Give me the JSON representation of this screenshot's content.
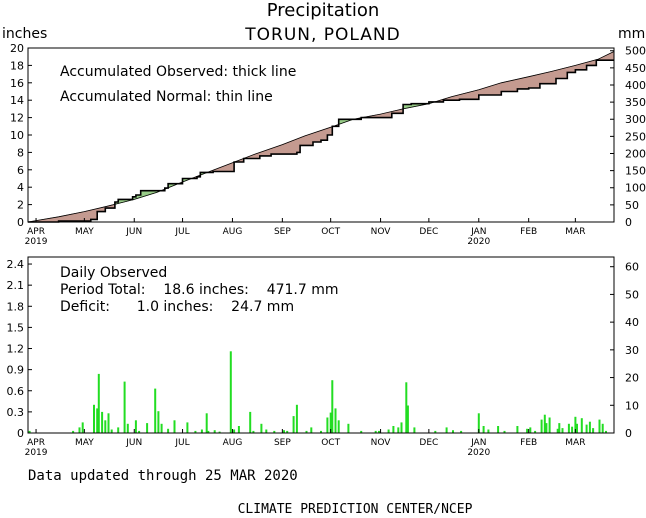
{
  "header": {
    "title": "Precipitation",
    "subtitle": "TORUN, POLAND",
    "left_unit": "inches",
    "right_unit": "mm"
  },
  "top_panel": {
    "legend_line1": "Accumulated Observed: thick line",
    "legend_line2": "Accumulated Normal: thin line"
  },
  "bottom_panel": {
    "line1": "Daily Observed",
    "line2": "Period Total:    18.6 inches:    471.7 mm",
    "line3": "Deficit:      1.0 inches:    24.7 mm"
  },
  "footer": {
    "updated": "Data updated through 25 MAR 2020",
    "credit": "CLIMATE PREDICTION CENTER/NCEP"
  },
  "colors": {
    "surplus_fill": "#98cc88",
    "deficit_fill": "#c49a90",
    "bars": "#22dd22",
    "axis": "#000000"
  },
  "chart_data": [
    {
      "type": "area",
      "x_start": "2019-03-27",
      "x_end": "2020-03-25",
      "x_ticks": [
        "APR",
        "MAY",
        "JUN",
        "JUL",
        "AUG",
        "SEP",
        "OCT",
        "NOV",
        "DEC",
        "JAN",
        "FEB",
        "MAR"
      ],
      "x_years": [
        "2019",
        "2020"
      ],
      "ylim": [
        0,
        20
      ],
      "y_ticks": [
        "0",
        "2",
        "4",
        "6",
        "8",
        "10",
        "12",
        "14",
        "16",
        "18",
        "20"
      ],
      "y2lim": [
        0,
        508
      ],
      "y2_ticks": [
        "0",
        "50",
        "100",
        "150",
        "200",
        "250",
        "300",
        "350",
        "400",
        "450",
        "500"
      ],
      "series": [
        {
          "name": "Accumulated Observed",
          "points": [
            [
              "2019-03-27",
              0
            ],
            [
              "2019-04-15",
              0.1
            ],
            [
              "2019-04-25",
              0.1
            ],
            [
              "2019-05-05",
              0.3
            ],
            [
              "2019-05-09",
              1.2
            ],
            [
              "2019-05-14",
              1.6
            ],
            [
              "2019-05-20",
              2.3
            ],
            [
              "2019-05-22",
              2.6
            ],
            [
              "2019-05-31",
              2.9
            ],
            [
              "2019-06-02",
              3.1
            ],
            [
              "2019-06-05",
              3.6
            ],
            [
              "2019-06-20",
              3.9
            ],
            [
              "2019-06-22",
              4.4
            ],
            [
              "2019-07-01",
              5.0
            ],
            [
              "2019-07-10",
              5.2
            ],
            [
              "2019-07-12",
              5.7
            ],
            [
              "2019-07-20",
              5.8
            ],
            [
              "2019-08-01",
              5.8
            ],
            [
              "2019-08-02",
              6.9
            ],
            [
              "2019-08-08",
              7.3
            ],
            [
              "2019-08-18",
              7.6
            ],
            [
              "2019-08-25",
              7.8
            ],
            [
              "2019-09-10",
              8.0
            ],
            [
              "2019-09-12",
              8.8
            ],
            [
              "2019-09-20",
              9.2
            ],
            [
              "2019-09-25",
              9.4
            ],
            [
              "2019-09-29",
              10.0
            ],
            [
              "2019-10-02",
              11.0
            ],
            [
              "2019-10-06",
              11.8
            ],
            [
              "2019-10-20",
              12.0
            ],
            [
              "2019-11-01",
              12.0
            ],
            [
              "2019-11-08",
              12.5
            ],
            [
              "2019-11-15",
              13.5
            ],
            [
              "2019-11-20",
              13.6
            ],
            [
              "2019-12-01",
              13.8
            ],
            [
              "2019-12-10",
              14.0
            ],
            [
              "2019-12-20",
              14.1
            ],
            [
              "2020-01-01",
              14.6
            ],
            [
              "2020-01-15",
              15.0
            ],
            [
              "2020-01-25",
              15.3
            ],
            [
              "2020-02-01",
              15.4
            ],
            [
              "2020-02-08",
              15.9
            ],
            [
              "2020-02-18",
              16.5
            ],
            [
              "2020-02-25",
              17.2
            ],
            [
              "2020-03-01",
              17.5
            ],
            [
              "2020-03-08",
              18.0
            ],
            [
              "2020-03-14",
              18.6
            ],
            [
              "2020-03-25",
              18.6
            ]
          ]
        },
        {
          "name": "Accumulated Normal",
          "points": [
            [
              "2019-03-27",
              0
            ],
            [
              "2019-04-15",
              0.6
            ],
            [
              "2019-05-01",
              1.2
            ],
            [
              "2019-05-15",
              1.8
            ],
            [
              "2019-06-01",
              2.6
            ],
            [
              "2019-06-15",
              3.4
            ],
            [
              "2019-07-01",
              4.6
            ],
            [
              "2019-07-15",
              5.6
            ],
            [
              "2019-08-01",
              6.8
            ],
            [
              "2019-08-15",
              7.8
            ],
            [
              "2019-09-01",
              8.9
            ],
            [
              "2019-09-15",
              9.9
            ],
            [
              "2019-10-01",
              10.9
            ],
            [
              "2019-10-15",
              11.8
            ],
            [
              "2019-11-01",
              12.4
            ],
            [
              "2019-11-15",
              13.0
            ],
            [
              "2019-12-01",
              13.6
            ],
            [
              "2019-12-15",
              14.4
            ],
            [
              "2020-01-01",
              15.2
            ],
            [
              "2020-01-15",
              16.0
            ],
            [
              "2020-02-01",
              16.7
            ],
            [
              "2020-02-15",
              17.3
            ],
            [
              "2020-03-01",
              18.0
            ],
            [
              "2020-03-15",
              18.7
            ],
            [
              "2020-03-25",
              19.6
            ]
          ]
        }
      ]
    },
    {
      "type": "bar",
      "ylim": [
        0,
        2.5
      ],
      "y_ticks": [
        "0",
        "0.3",
        "0.6",
        "0.9",
        "1.2",
        "1.5",
        "1.8",
        "2.1",
        "2.4"
      ],
      "y2lim": [
        0,
        63.5
      ],
      "y2_ticks": [
        "0",
        "10",
        "20",
        "30",
        "40",
        "50",
        "60"
      ],
      "series": [
        {
          "name": "Daily Observed",
          "points": [
            [
              "2019-03-28",
              0.03
            ],
            [
              "2019-04-24",
              0.03
            ],
            [
              "2019-04-28",
              0.08
            ],
            [
              "2019-04-30",
              0.15
            ],
            [
              "2019-05-07",
              0.4
            ],
            [
              "2019-05-09",
              0.35
            ],
            [
              "2019-05-10",
              0.84
            ],
            [
              "2019-05-12",
              0.3
            ],
            [
              "2019-05-14",
              0.18
            ],
            [
              "2019-05-16",
              0.28
            ],
            [
              "2019-05-18",
              0.05
            ],
            [
              "2019-05-22",
              0.08
            ],
            [
              "2019-05-26",
              0.73
            ],
            [
              "2019-05-28",
              0.13
            ],
            [
              "2019-06-02",
              0.18
            ],
            [
              "2019-06-04",
              0.03
            ],
            [
              "2019-06-09",
              0.14
            ],
            [
              "2019-06-14",
              0.63
            ],
            [
              "2019-06-16",
              0.31
            ],
            [
              "2019-06-18",
              0.13
            ],
            [
              "2019-06-22",
              0.06
            ],
            [
              "2019-06-26",
              0.18
            ],
            [
              "2019-07-04",
              0.15
            ],
            [
              "2019-07-09",
              0.03
            ],
            [
              "2019-07-13",
              0.05
            ],
            [
              "2019-07-16",
              0.28
            ],
            [
              "2019-07-17",
              0.03
            ],
            [
              "2019-07-21",
              0.04
            ],
            [
              "2019-07-24",
              0.02
            ],
            [
              "2019-07-31",
              1.16
            ],
            [
              "2019-08-02",
              0.05
            ],
            [
              "2019-08-05",
              0.1
            ],
            [
              "2019-08-12",
              0.3
            ],
            [
              "2019-08-14",
              0.03
            ],
            [
              "2019-08-19",
              0.13
            ],
            [
              "2019-08-22",
              0.05
            ],
            [
              "2019-08-27",
              0.03
            ],
            [
              "2019-09-02",
              0.04
            ],
            [
              "2019-09-04",
              0.03
            ],
            [
              "2019-09-08",
              0.24
            ],
            [
              "2019-09-10",
              0.4
            ],
            [
              "2019-09-16",
              0.03
            ],
            [
              "2019-09-19",
              0.08
            ],
            [
              "2019-09-25",
              0.03
            ],
            [
              "2019-09-29",
              0.22
            ],
            [
              "2019-10-01",
              0.29
            ],
            [
              "2019-10-02",
              0.75
            ],
            [
              "2019-10-04",
              0.35
            ],
            [
              "2019-10-06",
              0.18
            ],
            [
              "2019-10-12",
              0.13
            ],
            [
              "2019-10-20",
              0.03
            ],
            [
              "2019-10-29",
              0.03
            ],
            [
              "2019-10-31",
              0.03
            ],
            [
              "2019-11-06",
              0.05
            ],
            [
              "2019-11-09",
              0.1
            ],
            [
              "2019-11-12",
              0.08
            ],
            [
              "2019-11-14",
              0.15
            ],
            [
              "2019-11-17",
              0.72
            ],
            [
              "2019-11-18",
              0.39
            ],
            [
              "2019-11-22",
              0.08
            ],
            [
              "2019-12-05",
              0.03
            ],
            [
              "2019-12-12",
              0.08
            ],
            [
              "2019-12-16",
              0.04
            ],
            [
              "2019-12-21",
              0.03
            ],
            [
              "2020-01-01",
              0.28
            ],
            [
              "2020-01-04",
              0.1
            ],
            [
              "2020-01-07",
              0.05
            ],
            [
              "2020-01-13",
              0.1
            ],
            [
              "2020-01-17",
              0.03
            ],
            [
              "2020-01-25",
              0.1
            ],
            [
              "2020-01-31",
              0.06
            ],
            [
              "2020-02-02",
              0.08
            ],
            [
              "2020-02-05",
              0.03
            ],
            [
              "2020-02-09",
              0.19
            ],
            [
              "2020-02-11",
              0.26
            ],
            [
              "2020-02-12",
              0.14
            ],
            [
              "2020-02-14",
              0.22
            ],
            [
              "2020-02-19",
              0.06
            ],
            [
              "2020-02-20",
              0.14
            ],
            [
              "2020-02-22",
              0.07
            ],
            [
              "2020-02-26",
              0.13
            ],
            [
              "2020-02-28",
              0.09
            ],
            [
              "2020-03-01",
              0.23
            ],
            [
              "2020-03-02",
              0.13
            ],
            [
              "2020-03-05",
              0.21
            ],
            [
              "2020-03-08",
              0.12
            ],
            [
              "2020-03-10",
              0.16
            ],
            [
              "2020-03-12",
              0.07
            ],
            [
              "2020-03-16",
              0.19
            ],
            [
              "2020-03-18",
              0.13
            ],
            [
              "2020-03-20",
              0.03
            ]
          ]
        }
      ]
    }
  ]
}
